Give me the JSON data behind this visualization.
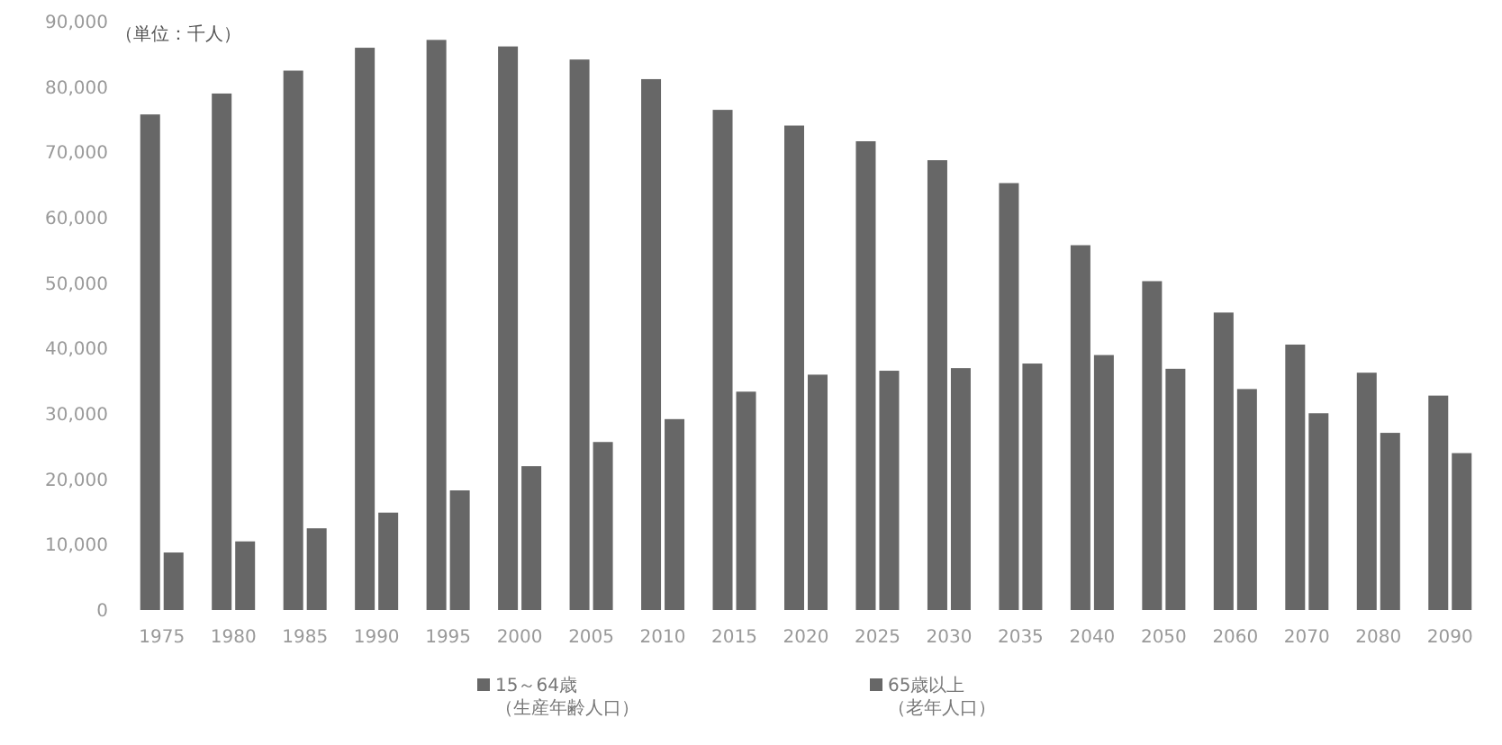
{
  "chart_data": {
    "type": "bar",
    "categories": [
      "1975",
      "1980",
      "1985",
      "1990",
      "1995",
      "2000",
      "2005",
      "2010",
      "2015",
      "2020",
      "2025",
      "2030",
      "2035",
      "2040",
      "2050",
      "2060",
      "2070",
      "2080",
      "2090"
    ],
    "series": [
      {
        "name": "15～64歳（生産年齢人口）",
        "color": "#676767",
        "values": [
          75800,
          79000,
          82500,
          86000,
          87200,
          86200,
          84200,
          81200,
          76500,
          74100,
          71700,
          68800,
          65300,
          55800,
          50300,
          45500,
          40600,
          36300,
          32800
        ]
      },
      {
        "name": "65歳以上（老年人口）",
        "color": "#676767",
        "values": [
          8800,
          10500,
          12500,
          14900,
          18300,
          22000,
          25700,
          29200,
          33400,
          36000,
          36600,
          37000,
          37700,
          39000,
          36900,
          33800,
          30100,
          27100,
          24000
        ]
      }
    ],
    "ylim": [
      0,
      90000
    ],
    "yticks": [
      {
        "value": 0,
        "label": "0"
      },
      {
        "value": 10000,
        "label": "10,000"
      },
      {
        "value": 20000,
        "label": "20,000"
      },
      {
        "value": 30000,
        "label": "30,000"
      },
      {
        "value": 40000,
        "label": "40,000"
      },
      {
        "value": 50000,
        "label": "50,000"
      },
      {
        "value": 60000,
        "label": "60,000"
      },
      {
        "value": 70000,
        "label": "70,000"
      },
      {
        "value": 80000,
        "label": "80,000"
      },
      {
        "value": 90000,
        "label": "90,000"
      }
    ],
    "annotations": [
      "（単位：千人）"
    ],
    "legend": "bottom"
  }
}
